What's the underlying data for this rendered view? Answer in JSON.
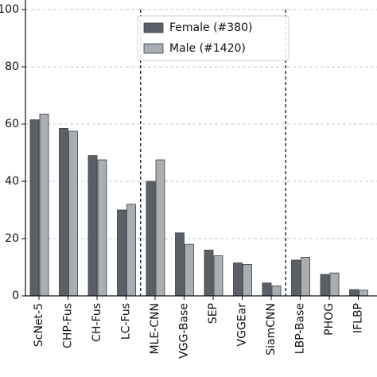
{
  "chart_data": {
    "type": "bar",
    "categories": [
      "ScNet-5",
      "CHP-Fus",
      "CH-Fus",
      "LC-Fus",
      "MLE-CNN",
      "VGG-Base",
      "SEP",
      "VGGEar",
      "SiamCNN",
      "LBP-Base",
      "PHOG",
      "IFLBP"
    ],
    "series": [
      {
        "name": "Female (#380)",
        "color": "#5b6067",
        "values": [
          61.5,
          58.5,
          49,
          30,
          40,
          22,
          16,
          11.5,
          4.5,
          12.5,
          7.5,
          2.2
        ]
      },
      {
        "name": "Male (#1420)",
        "color": "#a9aeb3",
        "values": [
          63.5,
          57.5,
          47.5,
          32,
          47.5,
          18,
          14,
          11,
          3.5,
          13.5,
          8,
          2
        ]
      }
    ],
    "ylim": [
      0,
      100
    ],
    "yticks": [
      0,
      20,
      40,
      60,
      80,
      100
    ],
    "grid": true,
    "legend": "upper center"
  }
}
